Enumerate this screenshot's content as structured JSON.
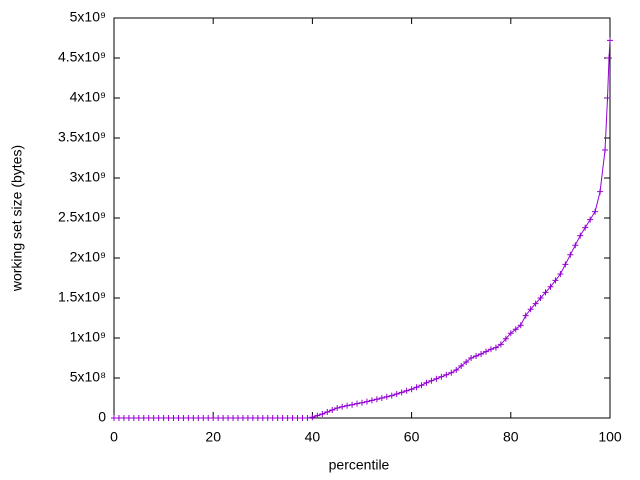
{
  "chart_data": {
    "type": "line",
    "xlabel": "percentile",
    "ylabel": "working set size (bytes)",
    "x": [
      0,
      1,
      2,
      3,
      4,
      5,
      6,
      7,
      8,
      9,
      10,
      11,
      12,
      13,
      14,
      15,
      16,
      17,
      18,
      19,
      20,
      21,
      22,
      23,
      24,
      25,
      26,
      27,
      28,
      29,
      30,
      31,
      32,
      33,
      34,
      35,
      36,
      37,
      38,
      39,
      40,
      41,
      42,
      43,
      44,
      45,
      46,
      47,
      48,
      49,
      50,
      51,
      52,
      53,
      54,
      55,
      56,
      57,
      58,
      59,
      60,
      61,
      62,
      63,
      64,
      65,
      66,
      67,
      68,
      69,
      70,
      71,
      72,
      73,
      74,
      75,
      76,
      77,
      78,
      79,
      80,
      81,
      82,
      83,
      84,
      85,
      86,
      87,
      88,
      89,
      90,
      91,
      92,
      93,
      94,
      95,
      96,
      97,
      98,
      99,
      99.5,
      99.8,
      100
    ],
    "series": [
      {
        "color": "#9400d3",
        "values": [
          0,
          0,
          0,
          0,
          0,
          0,
          0,
          0,
          0,
          0,
          0,
          0,
          0,
          0,
          0,
          0,
          0,
          0,
          0,
          0,
          0,
          0,
          0,
          0,
          0,
          0,
          0,
          0,
          0,
          0,
          0,
          0,
          0,
          0,
          0,
          0,
          0,
          0,
          0,
          0,
          10000000,
          30000000,
          50000000,
          75000000,
          100000000,
          125000000,
          140000000,
          155000000,
          165000000,
          180000000,
          190000000,
          205000000,
          220000000,
          235000000,
          250000000,
          265000000,
          280000000,
          300000000,
          320000000,
          340000000,
          360000000,
          385000000,
          410000000,
          440000000,
          465000000,
          490000000,
          515000000,
          540000000,
          565000000,
          600000000,
          650000000,
          700000000,
          750000000,
          775000000,
          800000000,
          830000000,
          860000000,
          880000000,
          920000000,
          990000000,
          1060000000,
          1110000000,
          1160000000,
          1280000000,
          1360000000,
          1430000000,
          1500000000,
          1570000000,
          1640000000,
          1720000000,
          1800000000,
          1920000000,
          2040000000,
          2160000000,
          2280000000,
          2380000000,
          2480000000,
          2580000000,
          2830000000,
          3350000000,
          4000000000,
          4500000000,
          4720000000
        ]
      }
    ],
    "xlim": [
      0,
      100
    ],
    "xticks": [
      0,
      20,
      40,
      60,
      80,
      100
    ],
    "ylim": [
      0,
      5000000000
    ],
    "yticks": [
      0,
      {
        "value": 500000000,
        "label": "5x10⁸"
      },
      {
        "value": 1000000000,
        "label": "1x10⁹"
      },
      {
        "value": 1500000000,
        "label": "1.5x10⁹"
      },
      {
        "value": 2000000000,
        "label": "2x10⁹"
      },
      {
        "value": 2500000000,
        "label": "2.5x10⁹"
      },
      {
        "value": 3000000000,
        "label": "3x10⁹"
      },
      {
        "value": 3500000000,
        "label": "3.5x10⁹"
      },
      {
        "value": 4000000000,
        "label": "4x10⁹"
      },
      {
        "value": 4500000000,
        "label": "4.5x10⁹"
      },
      {
        "value": 5000000000,
        "label": "5x10⁹"
      }
    ],
    "grid": false
  }
}
